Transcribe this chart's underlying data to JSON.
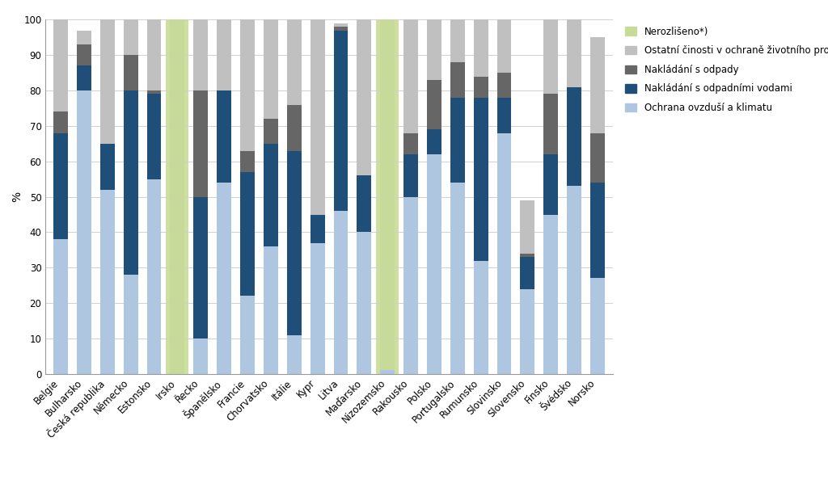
{
  "countries": [
    "Belgie",
    "Bulharsko",
    "Česká republika",
    "Německo",
    "Estonsko",
    "Irsko",
    "Řecko",
    "Španělsko",
    "Francie",
    "Chorvatsko",
    "Itálie",
    "Kypr",
    "Litva",
    "Maďarsko",
    "Nizozemsko",
    "Rakousko",
    "Polsko",
    "Portugalsko",
    "Rumunsko",
    "Slovinsko",
    "Slovensko",
    "Finsko",
    "Švédsko",
    "Norsko"
  ],
  "ochrana_ovzdusi": [
    38,
    80,
    52,
    28,
    55,
    0,
    10,
    54,
    22,
    36,
    11,
    37,
    46,
    40,
    1,
    50,
    62,
    54,
    32,
    68,
    24,
    45,
    53,
    27
  ],
  "nakladani_odpadnimi_vodami": [
    30,
    7,
    13,
    52,
    24,
    0,
    40,
    26,
    35,
    29,
    52,
    8,
    51,
    16,
    0,
    12,
    7,
    24,
    46,
    10,
    9,
    17,
    28,
    27
  ],
  "nakladani_odpady": [
    6,
    6,
    0,
    10,
    1,
    0,
    30,
    0,
    6,
    7,
    13,
    0,
    1,
    0,
    0,
    6,
    14,
    10,
    6,
    7,
    1,
    17,
    0,
    14
  ],
  "ostatni_cinnosti": [
    26,
    4,
    35,
    10,
    20,
    0,
    20,
    20,
    37,
    28,
    24,
    55,
    1,
    44,
    0,
    32,
    17,
    12,
    16,
    15,
    15,
    21,
    19,
    27
  ],
  "nerozliseno": [
    0,
    0,
    0,
    0,
    0,
    100,
    0,
    0,
    0,
    0,
    0,
    0,
    0,
    0,
    99,
    0,
    0,
    0,
    0,
    0,
    0,
    0,
    0,
    0
  ],
  "colors": {
    "ochrana_ovzdusi": "#aec6e0",
    "nakladani_odpadnimi_vodami": "#1f4e79",
    "nakladani_odpady": "#666666",
    "ostatni_cinnosti": "#c0c0c0",
    "nerozliseno": "#c8da9a"
  },
  "highlight_countries_idx": [
    5,
    14
  ],
  "highlight_color": "#cfdfa0",
  "background_color": "#ffffff",
  "grid_color": "#d0d0d0",
  "ylabel": "%",
  "ylim": [
    0,
    100
  ],
  "yticks": [
    0,
    10,
    20,
    30,
    40,
    50,
    60,
    70,
    80,
    90,
    100
  ],
  "legend_labels": [
    "Nerozlišeno*)",
    "Ostatní činosti v ochraně životního prostředí",
    "Nakládání s odpady",
    "Nakládání s odpadními vodami",
    "Ochrana ovzduší a klimatu"
  ],
  "legend_colors": [
    "#c8da9a",
    "#c0c0c0",
    "#666666",
    "#1f4e79",
    "#aec6e0"
  ]
}
